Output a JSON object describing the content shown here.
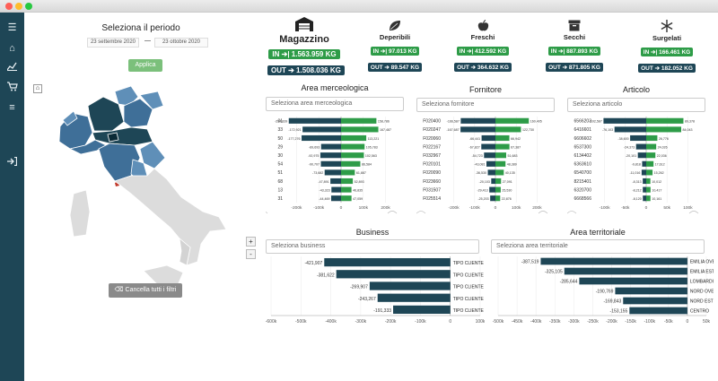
{
  "filters": {
    "period_title": "Seleziona il periodo",
    "date_from": "23 settembre 2020",
    "date_sep": "—",
    "date_to": "23 ottobre 2020",
    "apply_label": "Applica",
    "clear_label": "Cancella tutti i filtri",
    "zoom_in": "+",
    "zoom_out": "-"
  },
  "kpis": [
    {
      "name": "Magazzino",
      "in": "IN ➔| 1.563.959 KG",
      "out": "OUT ➔ 1.508.036 KG",
      "icon": "warehouse-icon"
    },
    {
      "name": "Deperibili",
      "in": "IN ➔| 97.013 KG",
      "out": "OUT ➔ 89.547 KG",
      "icon": "leaf-icon"
    },
    {
      "name": "Freschi",
      "in": "IN ➔| 412.592 KG",
      "out": "OUT ➔ 364.632 KG",
      "icon": "apple-icon"
    },
    {
      "name": "Secchi",
      "in": "IN ➔| 887.893 KG",
      "out": "OUT ➔ 871.805 KG",
      "icon": "box-icon"
    },
    {
      "name": "Surgelati",
      "in": "IN ➔| 166.461 KG",
      "out": "OUT ➔ 182.052 KG",
      "icon": "snowflake-icon"
    }
  ],
  "sections": {
    "area": {
      "title": "Area merceologica",
      "placeholder": "Seleziona area merceologica"
    },
    "fornitore": {
      "title": "Fornitore",
      "placeholder": "Seleziona fornitore"
    },
    "articolo": {
      "title": "Articolo",
      "placeholder": "Seleziona articolo"
    },
    "business": {
      "title": "Business",
      "placeholder": "Seleziona business"
    },
    "territorio": {
      "title": "Area territoriale",
      "placeholder": "Seleziona area territoriale"
    }
  },
  "colors": {
    "in": "#2e9c48",
    "out": "#1e4656",
    "map_dark": "#1e4656",
    "map_mid": "#3f6f98",
    "map_light": "#5f8fb8",
    "map_grey": "#dcdcdc"
  },
  "chart_data": [
    {
      "id": "area",
      "type": "bar",
      "categories": [
        "01",
        "33",
        "50",
        "29",
        "30",
        "54",
        "51",
        "68",
        "13",
        "31"
      ],
      "series": [
        {
          "values": [
            -234839,
            -172921,
            -177276,
            -89693,
            -92975,
            -90707,
            -73682,
            -47891,
            -43323,
            -44469
          ]
        },
        {
          "values": [
            158786,
            167487,
            113221,
            105783,
            102563,
            86584,
            61887,
            52893,
            46835,
            47059
          ]
        }
      ],
      "x_ticks": [
        "-200k",
        "-100k",
        "0",
        "100k",
        "200k"
      ],
      "xlim": [
        -250000,
        250000
      ]
    },
    {
      "id": "fornitore",
      "type": "bar",
      "categories": [
        "F020400",
        "F020247",
        "F020060",
        "F022167",
        "F032967",
        "F020101",
        "F020090",
        "F023660",
        "F031507",
        "F025514"
      ],
      "series": [
        {
          "values": [
            -166587,
            -167687,
            -66441,
            -67827,
            -54723,
            -43081,
            -36530,
            -20103,
            -29413,
            -25203
          ]
        },
        {
          "values": [
            160405,
            122730,
            66942,
            67387,
            51683,
            48389,
            40135,
            27091,
            25530,
            22876
          ]
        }
      ],
      "x_ticks": [
        "-200k",
        "-100k",
        "0",
        "100k",
        "200k"
      ],
      "xlim": [
        -250000,
        250000
      ]
    },
    {
      "id": "articolo",
      "type": "bar",
      "categories": [
        "6566203",
        "6416601",
        "6606602",
        "6537300",
        "6134402",
        "6363610",
        "6540700",
        "8215401",
        "6320700",
        "6668566"
      ],
      "series": [
        {
          "values": [
            -102587,
            -76103,
            -38600,
            -24373,
            -20101,
            -9818,
            -11016,
            -8313,
            -8212,
            -8120
          ]
        },
        {
          "values": [
            89378,
            84043,
            26776,
            24026,
            22036,
            17612,
            15262,
            10012,
            10417,
            10161
          ]
        }
      ],
      "x_ticks": [
        "-100k",
        "-50k",
        "0",
        "50k",
        "100k"
      ],
      "xlim": [
        -125000,
        125000
      ]
    },
    {
      "id": "business",
      "type": "bar",
      "categories": [
        "TIPO CLIENTE 1",
        "TIPO CLIENTE 2",
        "TIPO CLIENTE 3",
        "TIPO CLIENTE 4",
        "TIPO CLIENTE 5"
      ],
      "series": [
        {
          "values": [
            -421907,
            -381622,
            -269907,
            -243267,
            -191333
          ]
        }
      ],
      "x_ticks": [
        "-600k",
        "-500k",
        "-400k",
        "-300k",
        "-200k",
        "-100k",
        "0",
        "100k"
      ],
      "xlim": [
        -600000,
        100000
      ]
    },
    {
      "id": "territorio",
      "type": "bar",
      "categories": [
        "EMILIA OVEST",
        "EMILIA EST",
        "LOMBARDIA",
        "NORD OVEST",
        "NORD EST",
        "CENTRO"
      ],
      "series": [
        {
          "values": [
            -387519,
            -325105,
            -285644,
            -190769,
            -169843,
            -153155
          ]
        }
      ],
      "x_ticks": [
        "-500k",
        "-450k",
        "-400k",
        "-350k",
        "-300k",
        "-250k",
        "-200k",
        "-150k",
        "-100k",
        "-50k",
        "0",
        "50k"
      ],
      "xlim": [
        -500000,
        50000
      ]
    }
  ]
}
